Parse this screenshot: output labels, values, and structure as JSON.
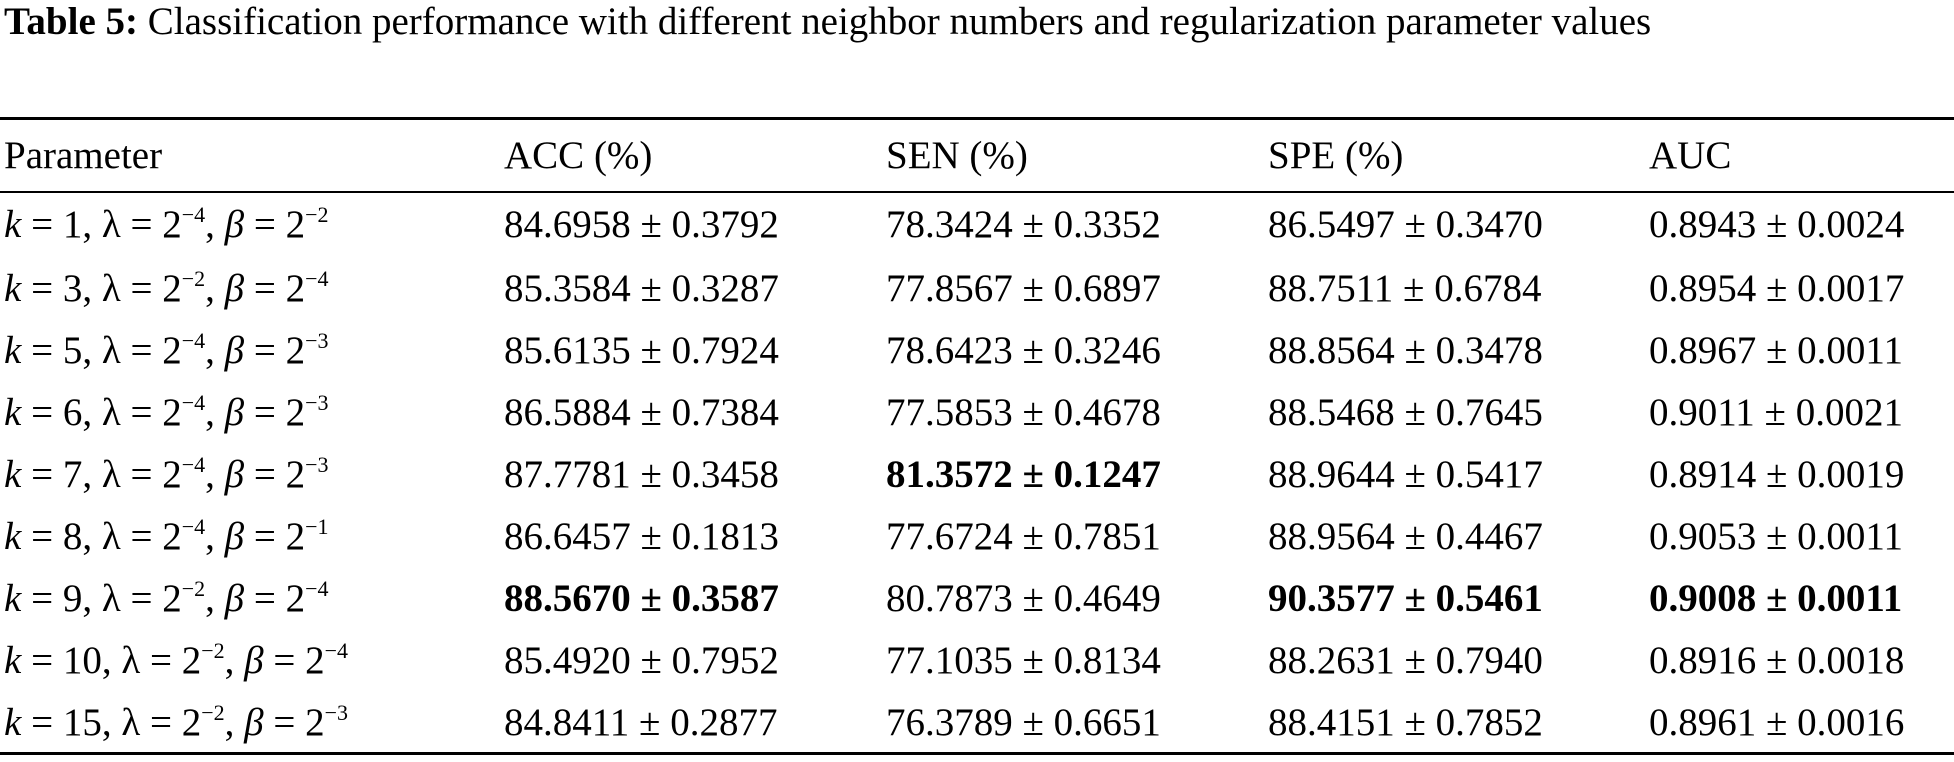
{
  "caption": {
    "label": "Table 5:",
    "text": " Classification performance with different neighbor numbers and regularization parameter values"
  },
  "headers": [
    "Parameter",
    "ACC (%)",
    "SEN (%)",
    "SPE (%)",
    "AUC"
  ],
  "rows": [
    {
      "k": "1",
      "lambda_exp": "−4",
      "beta_exp": "−2",
      "acc": "84.6958 ± 0.3792",
      "sen": "78.3424 ± 0.3352",
      "spe": "86.5497 ± 0.3470",
      "auc": "0.8943 ± 0.0024"
    },
    {
      "k": "3",
      "lambda_exp": "−2",
      "beta_exp": "−4",
      "acc": "85.3584 ± 0.3287",
      "sen": "77.8567 ± 0.6897",
      "spe": "88.7511 ± 0.6784",
      "auc": "0.8954 ± 0.0017"
    },
    {
      "k": "5",
      "lambda_exp": "−4",
      "beta_exp": "−3",
      "acc": "85.6135 ± 0.7924",
      "sen": "78.6423 ± 0.3246",
      "spe": "88.8564 ± 0.3478",
      "auc": "0.8967 ± 0.0011"
    },
    {
      "k": "6",
      "lambda_exp": "−4",
      "beta_exp": "−3",
      "acc": "86.5884 ± 0.7384",
      "sen": "77.5853 ± 0.4678",
      "spe": "88.5468 ± 0.7645",
      "auc": "0.9011 ± 0.0021"
    },
    {
      "k": "7",
      "lambda_exp": "−4",
      "beta_exp": "−3",
      "acc": "87.7781 ± 0.3458",
      "sen": "81.3572 ± 0.1247",
      "spe": "88.9644 ± 0.5417",
      "auc": "0.8914 ± 0.0019"
    },
    {
      "k": "8",
      "lambda_exp": "−4",
      "beta_exp": "−1",
      "acc": "86.6457 ± 0.1813",
      "sen": "77.6724 ± 0.7851",
      "spe": "88.9564 ± 0.4467",
      "auc": "0.9053 ± 0.0011"
    },
    {
      "k": "9",
      "lambda_exp": "−2",
      "beta_exp": "−4",
      "acc": "88.5670 ± 0.3587",
      "sen": "80.7873 ± 0.4649",
      "spe": "90.3577 ± 0.5461",
      "auc": "0.9008 ± 0.0011"
    },
    {
      "k": "10",
      "lambda_exp": "−2",
      "beta_exp": "−4",
      "acc": "85.4920 ± 0.7952",
      "sen": "77.1035 ± 0.8134",
      "spe": "88.2631 ± 0.7940",
      "auc": "0.8916 ± 0.0018"
    },
    {
      "k": "15",
      "lambda_exp": "−2",
      "beta_exp": "−3",
      "acc": "84.8411 ± 0.2877",
      "sen": "76.3789 ± 0.6651",
      "spe": "88.4151 ± 0.7852",
      "auc": "0.8961 ± 0.0016"
    }
  ],
  "symbols": {
    "k": "k",
    "lambda": "λ",
    "beta": "β",
    "base": "2"
  }
}
